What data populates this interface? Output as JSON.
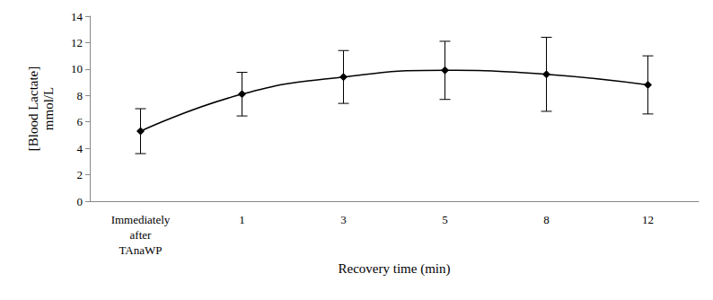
{
  "chart_data": {
    "type": "line",
    "x_label": "Recovery time (min)",
    "y_label": "[Blood Lactate]\nmmol/L",
    "categories": [
      "Immediately\nafter\nTAnaWP",
      "1",
      "3",
      "5",
      "8",
      "12"
    ],
    "values": [
      5.3,
      8.1,
      9.4,
      9.9,
      9.6,
      8.8
    ],
    "errors": [
      1.7,
      1.65,
      2.0,
      2.2,
      2.8,
      2.2
    ],
    "color": "#000000",
    "marker": "diamond",
    "line_style": "smooth",
    "ylim": [
      0,
      14
    ],
    "yticks": [
      0,
      2,
      4,
      6,
      8,
      10,
      12,
      14
    ],
    "grid": false
  }
}
